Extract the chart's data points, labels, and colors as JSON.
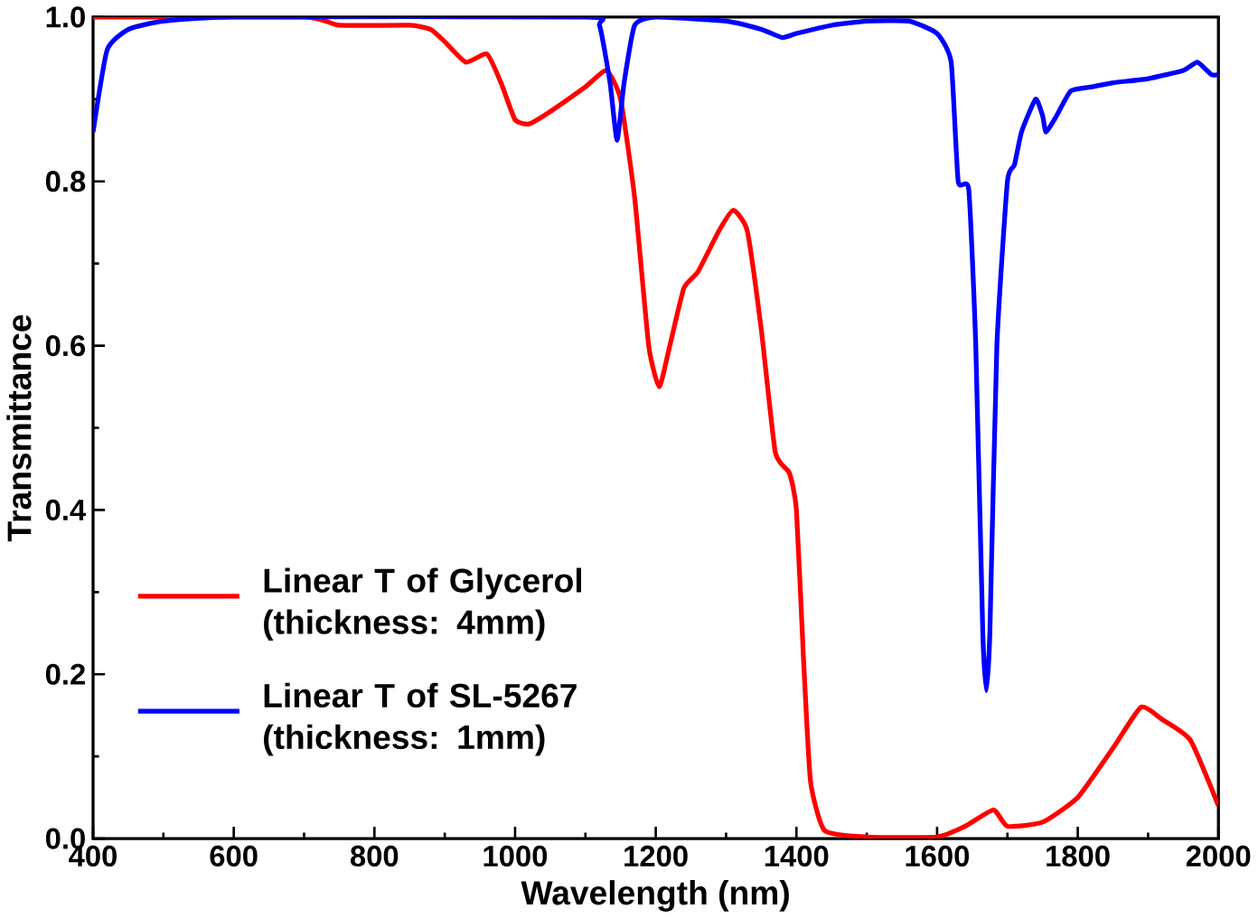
{
  "chart_data": {
    "type": "line",
    "xlabel": "Wavelength (nm)",
    "ylabel": "Transmittance",
    "xlim": [
      400,
      2000
    ],
    "ylim": [
      0,
      1.0
    ],
    "xticks": [
      400,
      600,
      800,
      1000,
      1200,
      1400,
      1600,
      1800,
      2000
    ],
    "yticks": [
      {
        "value": 0,
        "label": "0.0"
      },
      0.2,
      0.4,
      0.6,
      0.8,
      {
        "value": 1,
        "label": "1.0"
      }
    ],
    "legend": "bottom left",
    "grid": false,
    "marker": "none",
    "line_style": "solid",
    "series": [
      {
        "name": "Linear T of Glycerol (thickness: 4mm)",
        "color": "#ff0000",
        "x": [
          400,
          700,
          750,
          850,
          880,
          900,
          930,
          960,
          980,
          1000,
          1020,
          1050,
          1100,
          1130,
          1150,
          1170,
          1190,
          1205,
          1220,
          1240,
          1260,
          1290,
          1310,
          1330,
          1350,
          1370,
          1390,
          1400,
          1410,
          1420,
          1440,
          1500,
          1600,
          1640,
          1680,
          1700,
          1750,
          1800,
          1850,
          1890,
          1920,
          1960,
          2000
        ],
        "values": [
          1.0,
          1.0,
          0.99,
          0.99,
          0.985,
          0.97,
          0.945,
          0.955,
          0.92,
          0.875,
          0.87,
          0.885,
          0.915,
          0.935,
          0.9,
          0.78,
          0.6,
          0.55,
          0.6,
          0.67,
          0.69,
          0.74,
          0.765,
          0.74,
          0.62,
          0.47,
          0.445,
          0.4,
          0.22,
          0.07,
          0.01,
          0.002,
          0.002,
          0.015,
          0.035,
          0.015,
          0.02,
          0.05,
          0.11,
          0.16,
          0.145,
          0.12,
          0.04
        ]
      },
      {
        "name": "Linear T of SL-5267 (thickness: 1mm)",
        "color": "#0000ff",
        "x": [
          400,
          420,
          450,
          500,
          600,
          1100,
          1120,
          1135,
          1145,
          1155,
          1170,
          1200,
          1300,
          1350,
          1380,
          1400,
          1450,
          1500,
          1560,
          1600,
          1620,
          1630,
          1645,
          1655,
          1665,
          1670,
          1675,
          1685,
          1700,
          1710,
          1720,
          1740,
          1750,
          1755,
          1770,
          1790,
          1820,
          1850,
          1900,
          1950,
          1970,
          1990,
          2000
        ],
        "values": [
          0.86,
          0.96,
          0.985,
          0.995,
          1.0,
          1.0,
          0.99,
          0.92,
          0.85,
          0.92,
          0.99,
          1.0,
          0.995,
          0.985,
          0.975,
          0.98,
          0.99,
          0.995,
          0.995,
          0.98,
          0.945,
          0.8,
          0.79,
          0.6,
          0.25,
          0.18,
          0.25,
          0.6,
          0.8,
          0.82,
          0.86,
          0.9,
          0.88,
          0.86,
          0.88,
          0.91,
          0.915,
          0.92,
          0.925,
          0.935,
          0.945,
          0.93,
          0.93
        ]
      }
    ]
  }
}
